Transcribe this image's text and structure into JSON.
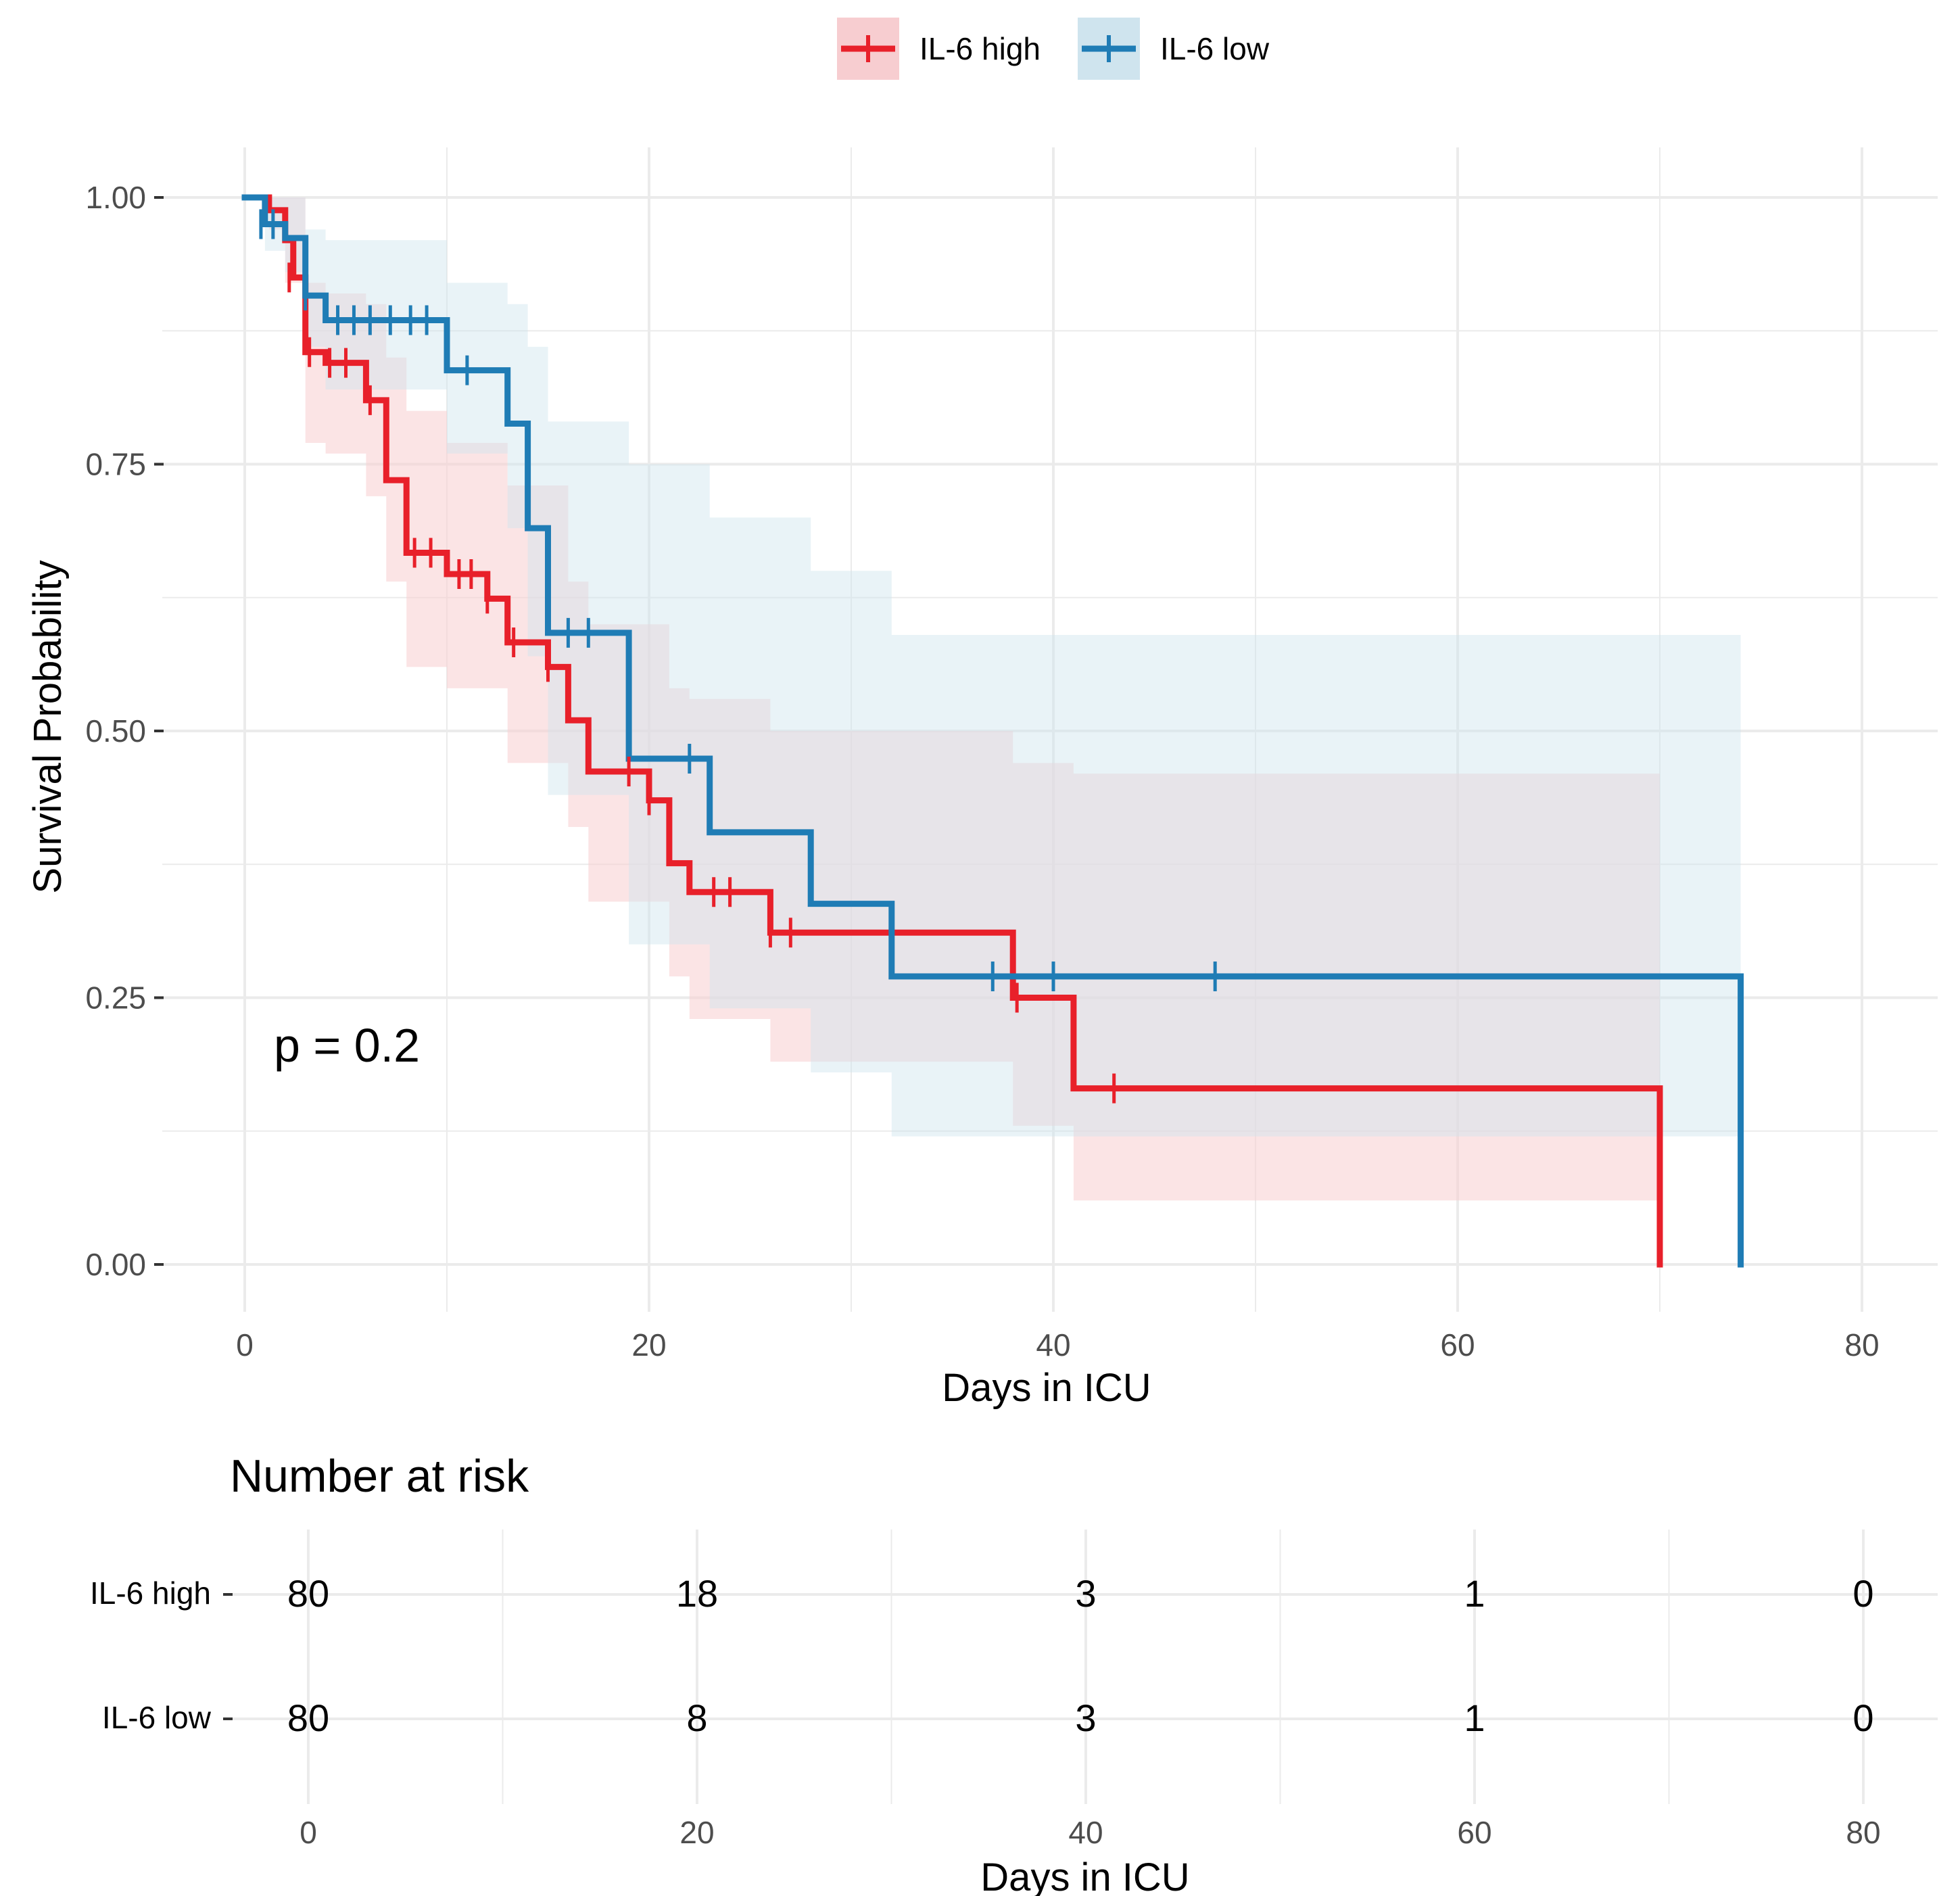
{
  "colors": {
    "high": "#e8202a",
    "low": "#1f7cb5",
    "high_band": "#f7cdd0",
    "low_band": "#cfe4ee",
    "grid": "#ebebeb"
  },
  "chart_data": {
    "type": "line",
    "subtype": "kaplan-meier",
    "xlabel": "Days in ICU",
    "ylabel": "Survival Probability",
    "xlim": [
      0,
      80
    ],
    "ylim": [
      0,
      1
    ],
    "x_ticks": [
      "0",
      "20",
      "40",
      "60",
      "80"
    ],
    "y_ticks": [
      "0.00",
      "0.25",
      "0.50",
      "0.75",
      "1.00"
    ],
    "annotation": "p = 0.2",
    "legend": {
      "position": "top",
      "entries": [
        "IL-6 high",
        "IL-6 low"
      ]
    },
    "series": [
      {
        "name": "IL-6 high",
        "color_key": "high",
        "steps": [
          [
            0,
            1.0
          ],
          [
            1.2,
            0.988
          ],
          [
            2.0,
            0.96
          ],
          [
            2.4,
            0.925
          ],
          [
            3.0,
            0.855
          ],
          [
            4.0,
            0.845
          ],
          [
            6.0,
            0.81
          ],
          [
            7.0,
            0.735
          ],
          [
            8.0,
            0.667
          ],
          [
            10.0,
            0.647
          ],
          [
            12.0,
            0.624
          ],
          [
            13.0,
            0.583
          ],
          [
            15.0,
            0.56
          ],
          [
            16.0,
            0.51
          ],
          [
            17.0,
            0.462
          ],
          [
            20.0,
            0.435
          ],
          [
            21.0,
            0.376
          ],
          [
            22.0,
            0.349
          ],
          [
            26.0,
            0.311
          ],
          [
            38.0,
            0.25
          ],
          [
            41.0,
            0.165
          ],
          [
            70.0,
            0.0
          ]
        ],
        "end": 70.0,
        "censor": [
          [
            2.2,
            0.925
          ],
          [
            3.2,
            0.855
          ],
          [
            4.2,
            0.845
          ],
          [
            5.0,
            0.845
          ],
          [
            6.2,
            0.81
          ],
          [
            8.4,
            0.667
          ],
          [
            9.2,
            0.667
          ],
          [
            10.6,
            0.647
          ],
          [
            11.2,
            0.647
          ],
          [
            12.0,
            0.624
          ],
          [
            13.3,
            0.583
          ],
          [
            15.0,
            0.56
          ],
          [
            19.0,
            0.462
          ],
          [
            20.0,
            0.435
          ],
          [
            23.2,
            0.349
          ],
          [
            24.0,
            0.349
          ],
          [
            26.0,
            0.311
          ],
          [
            27.0,
            0.311
          ],
          [
            38.2,
            0.25
          ],
          [
            43.0,
            0.165
          ]
        ],
        "band": [
          [
            0,
            1.0,
            1.0
          ],
          [
            1.2,
            0.97,
            1.0
          ],
          [
            2.0,
            0.92,
            1.0
          ],
          [
            3.0,
            0.77,
            0.92
          ],
          [
            4.0,
            0.76,
            0.91
          ],
          [
            6.0,
            0.72,
            0.9
          ],
          [
            7.0,
            0.64,
            0.85
          ],
          [
            8.0,
            0.56,
            0.8
          ],
          [
            10.0,
            0.54,
            0.77
          ],
          [
            13.0,
            0.47,
            0.73
          ],
          [
            16.0,
            0.41,
            0.64
          ],
          [
            17.0,
            0.34,
            0.6
          ],
          [
            21.0,
            0.27,
            0.54
          ],
          [
            22.0,
            0.23,
            0.53
          ],
          [
            26.0,
            0.19,
            0.5
          ],
          [
            38.0,
            0.13,
            0.47
          ],
          [
            41.0,
            0.06,
            0.46
          ],
          [
            70.0,
            0.06,
            0.46
          ]
        ]
      },
      {
        "name": "IL-6 low",
        "color_key": "low",
        "steps": [
          [
            0,
            1.0
          ],
          [
            1.0,
            0.975
          ],
          [
            2.0,
            0.962
          ],
          [
            3.0,
            0.908
          ],
          [
            4.0,
            0.885
          ],
          [
            10.0,
            0.838
          ],
          [
            13.0,
            0.788
          ],
          [
            14.0,
            0.69
          ],
          [
            15.0,
            0.592
          ],
          [
            19.0,
            0.474
          ],
          [
            23.0,
            0.405
          ],
          [
            28.0,
            0.338
          ],
          [
            32.0,
            0.27
          ],
          [
            74.0,
            0.0
          ]
        ],
        "end": 74.0,
        "censor": [
          [
            0.8,
            0.975
          ],
          [
            1.4,
            0.975
          ],
          [
            3.0,
            0.908
          ],
          [
            4.6,
            0.885
          ],
          [
            5.4,
            0.885
          ],
          [
            6.2,
            0.885
          ],
          [
            7.2,
            0.885
          ],
          [
            8.2,
            0.885
          ],
          [
            9.0,
            0.885
          ],
          [
            11.0,
            0.838
          ],
          [
            16.0,
            0.592
          ],
          [
            17.0,
            0.592
          ],
          [
            22.0,
            0.474
          ],
          [
            37.0,
            0.27
          ],
          [
            40.0,
            0.27
          ],
          [
            48.0,
            0.27
          ]
        ],
        "band": [
          [
            0,
            1.0,
            1.0
          ],
          [
            1.0,
            0.95,
            1.0
          ],
          [
            2.0,
            0.93,
            1.0
          ],
          [
            3.0,
            0.86,
            0.97
          ],
          [
            4.0,
            0.82,
            0.96
          ],
          [
            10.0,
            0.76,
            0.92
          ],
          [
            13.0,
            0.69,
            0.9
          ],
          [
            14.0,
            0.57,
            0.86
          ],
          [
            15.0,
            0.44,
            0.79
          ],
          [
            19.0,
            0.3,
            0.75
          ],
          [
            23.0,
            0.24,
            0.7
          ],
          [
            28.0,
            0.18,
            0.65
          ],
          [
            32.0,
            0.12,
            0.59
          ],
          [
            74.0,
            0.12,
            0.59
          ]
        ]
      }
    ]
  },
  "risk_table": {
    "title": "Number at risk",
    "xlabel": "Days in ICU",
    "x_ticks": [
      "0",
      "20",
      "40",
      "60",
      "80"
    ],
    "rows": [
      {
        "label": "IL-6 high",
        "color_key": "high",
        "values": [
          "80",
          "18",
          "3",
          "1",
          "0"
        ]
      },
      {
        "label": "IL-6 low",
        "color_key": "low",
        "values": [
          "80",
          "8",
          "3",
          "1",
          "0"
        ]
      }
    ]
  }
}
